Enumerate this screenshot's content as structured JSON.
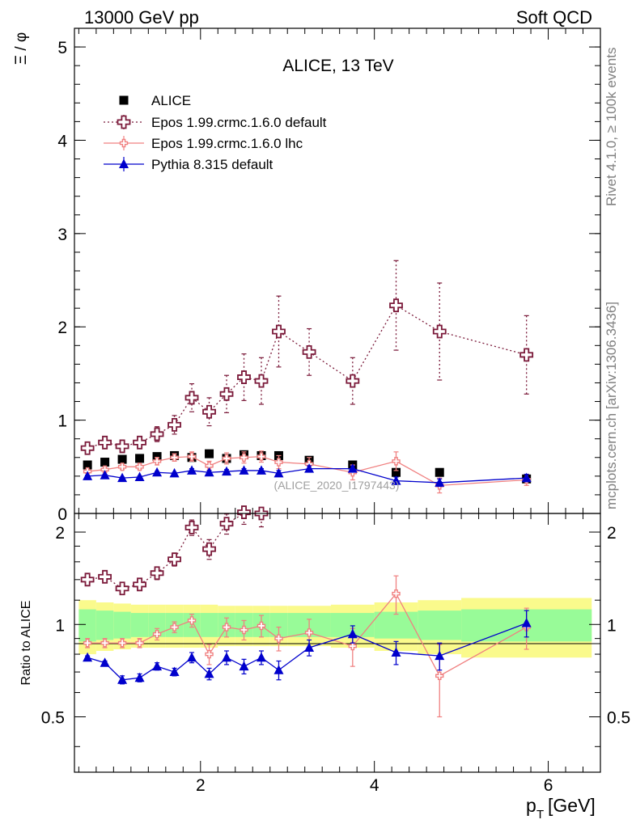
{
  "header": {
    "left": "13000 GeV pp",
    "right": "Soft QCD"
  },
  "side_labels": {
    "rivet": "Rivet 4.1.0, ≥ 100k events",
    "mcplots": "mcplots.cern.ch [arXiv:1306.3436]"
  },
  "colors": {
    "alice": "#000000",
    "epos_default": "#7b1a3a",
    "epos_lhc": "#f08080",
    "pythia": "#0000cc",
    "band_inner": "#98fb98",
    "band_outer": "#fafa8c"
  },
  "chart_data": [
    {
      "type": "scatter",
      "panel": "main",
      "title": "ALICE, 13 TeV",
      "ylabel": "Ξ / φ",
      "xlabel": "p_T [GeV]",
      "xlim": [
        0.55,
        6.6
      ],
      "ylim": [
        0,
        5.2
      ],
      "yticks": [
        0,
        1,
        2,
        3,
        4,
        5
      ],
      "analysis_tag": "(ALICE_2020_I1797443)",
      "series": [
        {
          "name": "ALICE",
          "key": "alice",
          "marker": "square",
          "x": [
            0.7,
            0.9,
            1.1,
            1.3,
            1.5,
            1.7,
            1.9,
            2.1,
            2.3,
            2.5,
            2.7,
            2.9,
            3.25,
            3.75,
            4.25,
            4.75,
            5.75
          ],
          "y": [
            0.52,
            0.55,
            0.58,
            0.59,
            0.61,
            0.62,
            0.6,
            0.64,
            0.59,
            0.63,
            0.62,
            0.62,
            0.57,
            0.52,
            0.44,
            0.44,
            0.37
          ]
        },
        {
          "name": "Epos 1.99.crmc.1.6.0 default",
          "key": "epos_default",
          "marker": "cross-open",
          "line": "dotted",
          "x": [
            0.7,
            0.9,
            1.1,
            1.3,
            1.5,
            1.7,
            1.9,
            2.1,
            2.3,
            2.5,
            2.7,
            2.9,
            3.25,
            3.75,
            4.25,
            4.75,
            5.75
          ],
          "y": [
            0.7,
            0.76,
            0.72,
            0.76,
            0.85,
            0.95,
            1.24,
            1.09,
            1.28,
            1.46,
            1.42,
            1.95,
            1.73,
            1.42,
            2.23,
            1.95,
            1.7
          ],
          "err": [
            0.03,
            0.04,
            0.05,
            0.06,
            0.08,
            0.1,
            0.15,
            0.15,
            0.2,
            0.25,
            0.25,
            0.38,
            0.25,
            0.25,
            0.48,
            0.52,
            0.42
          ]
        },
        {
          "name": "Epos 1.99.crmc.1.6.0 lhc",
          "key": "epos_lhc",
          "marker": "cross-small",
          "line": "solid",
          "x": [
            0.7,
            0.9,
            1.1,
            1.3,
            1.5,
            1.7,
            1.9,
            2.1,
            2.3,
            2.5,
            2.7,
            2.9,
            3.25,
            3.75,
            4.25,
            4.75,
            5.75
          ],
          "y": [
            0.45,
            0.47,
            0.5,
            0.5,
            0.56,
            0.6,
            0.61,
            0.51,
            0.59,
            0.6,
            0.61,
            0.55,
            0.53,
            0.44,
            0.56,
            0.3,
            0.36
          ],
          "err": [
            0.02,
            0.03,
            0.03,
            0.03,
            0.04,
            0.04,
            0.05,
            0.05,
            0.06,
            0.06,
            0.06,
            0.07,
            0.07,
            0.08,
            0.1,
            0.08,
            0.06
          ]
        },
        {
          "name": "Pythia 8.315 default",
          "key": "pythia",
          "marker": "triangle",
          "line": "solid",
          "x": [
            0.7,
            0.9,
            1.1,
            1.3,
            1.5,
            1.7,
            1.9,
            2.1,
            2.3,
            2.5,
            2.7,
            2.9,
            3.25,
            3.75,
            4.25,
            4.75,
            5.75
          ],
          "y": [
            0.4,
            0.41,
            0.38,
            0.39,
            0.44,
            0.43,
            0.46,
            0.44,
            0.45,
            0.46,
            0.46,
            0.43,
            0.48,
            0.48,
            0.35,
            0.33,
            0.38
          ],
          "err": [
            0.01,
            0.01,
            0.01,
            0.01,
            0.01,
            0.01,
            0.02,
            0.02,
            0.02,
            0.02,
            0.02,
            0.03,
            0.03,
            0.03,
            0.04,
            0.04,
            0.04
          ]
        }
      ]
    },
    {
      "type": "scatter",
      "panel": "ratio",
      "ylabel": "Ratio to ALICE",
      "xlabel": "p_T [GeV]",
      "xlim": [
        0.55,
        6.6
      ],
      "ylim": [
        0.33,
        2.3
      ],
      "ylog": true,
      "yticks": [
        0.5,
        1,
        2
      ],
      "xticks": [
        2,
        4,
        6
      ],
      "band": {
        "x_edges": [
          0.6,
          0.8,
          1.0,
          1.2,
          1.4,
          1.6,
          1.8,
          2.0,
          2.2,
          2.4,
          2.6,
          2.8,
          3.0,
          3.5,
          4.0,
          4.5,
          5.0,
          6.5
        ],
        "inner": [
          0.12,
          0.11,
          0.1,
          0.09,
          0.09,
          0.09,
          0.09,
          0.09,
          0.09,
          0.09,
          0.09,
          0.09,
          0.09,
          0.09,
          0.1,
          0.11,
          0.12
        ],
        "outer": [
          0.2,
          0.18,
          0.17,
          0.16,
          0.16,
          0.16,
          0.16,
          0.16,
          0.15,
          0.15,
          0.15,
          0.15,
          0.15,
          0.16,
          0.18,
          0.2,
          0.22
        ]
      },
      "series": [
        {
          "name": "Epos 1.99.crmc.1.6.0 default",
          "key": "epos_default",
          "x": [
            0.7,
            0.9,
            1.1,
            1.3,
            1.5,
            1.7,
            1.9,
            2.1,
            2.3,
            2.5,
            2.7
          ],
          "y": [
            1.4,
            1.43,
            1.31,
            1.35,
            1.47,
            1.63,
            2.07,
            1.76,
            2.13,
            2.32,
            2.3
          ],
          "err": [
            0.04,
            0.05,
            0.05,
            0.06,
            0.07,
            0.08,
            0.12,
            0.13,
            0.16,
            0.2,
            0.22
          ]
        },
        {
          "name": "Epos 1.99.crmc.1.6.0 lhc",
          "key": "epos_lhc",
          "x": [
            0.7,
            0.9,
            1.1,
            1.3,
            1.5,
            1.7,
            1.9,
            2.1,
            2.3,
            2.5,
            2.7,
            2.9,
            3.25,
            3.75,
            4.25,
            4.75,
            5.75
          ],
          "y": [
            0.87,
            0.87,
            0.87,
            0.87,
            0.93,
            0.98,
            1.03,
            0.8,
            0.98,
            0.96,
            0.99,
            0.9,
            0.94,
            0.85,
            1.26,
            0.68,
            0.98
          ],
          "err": [
            0.03,
            0.03,
            0.03,
            0.03,
            0.04,
            0.04,
            0.05,
            0.06,
            0.07,
            0.07,
            0.08,
            0.08,
            0.1,
            0.12,
            0.18,
            0.18,
            0.15
          ]
        },
        {
          "name": "Pythia 8.315 default",
          "key": "pythia",
          "x": [
            0.7,
            0.9,
            1.1,
            1.3,
            1.5,
            1.7,
            1.9,
            2.1,
            2.3,
            2.5,
            2.7,
            2.9,
            3.25,
            3.75,
            4.25,
            4.75,
            5.75
          ],
          "y": [
            0.78,
            0.75,
            0.66,
            0.67,
            0.73,
            0.7,
            0.78,
            0.69,
            0.78,
            0.73,
            0.78,
            0.71,
            0.84,
            0.93,
            0.81,
            0.79,
            1.01
          ],
          "err": [
            0.01,
            0.01,
            0.02,
            0.02,
            0.02,
            0.02,
            0.03,
            0.03,
            0.04,
            0.04,
            0.04,
            0.05,
            0.05,
            0.06,
            0.07,
            0.08,
            0.1
          ]
        }
      ]
    }
  ]
}
